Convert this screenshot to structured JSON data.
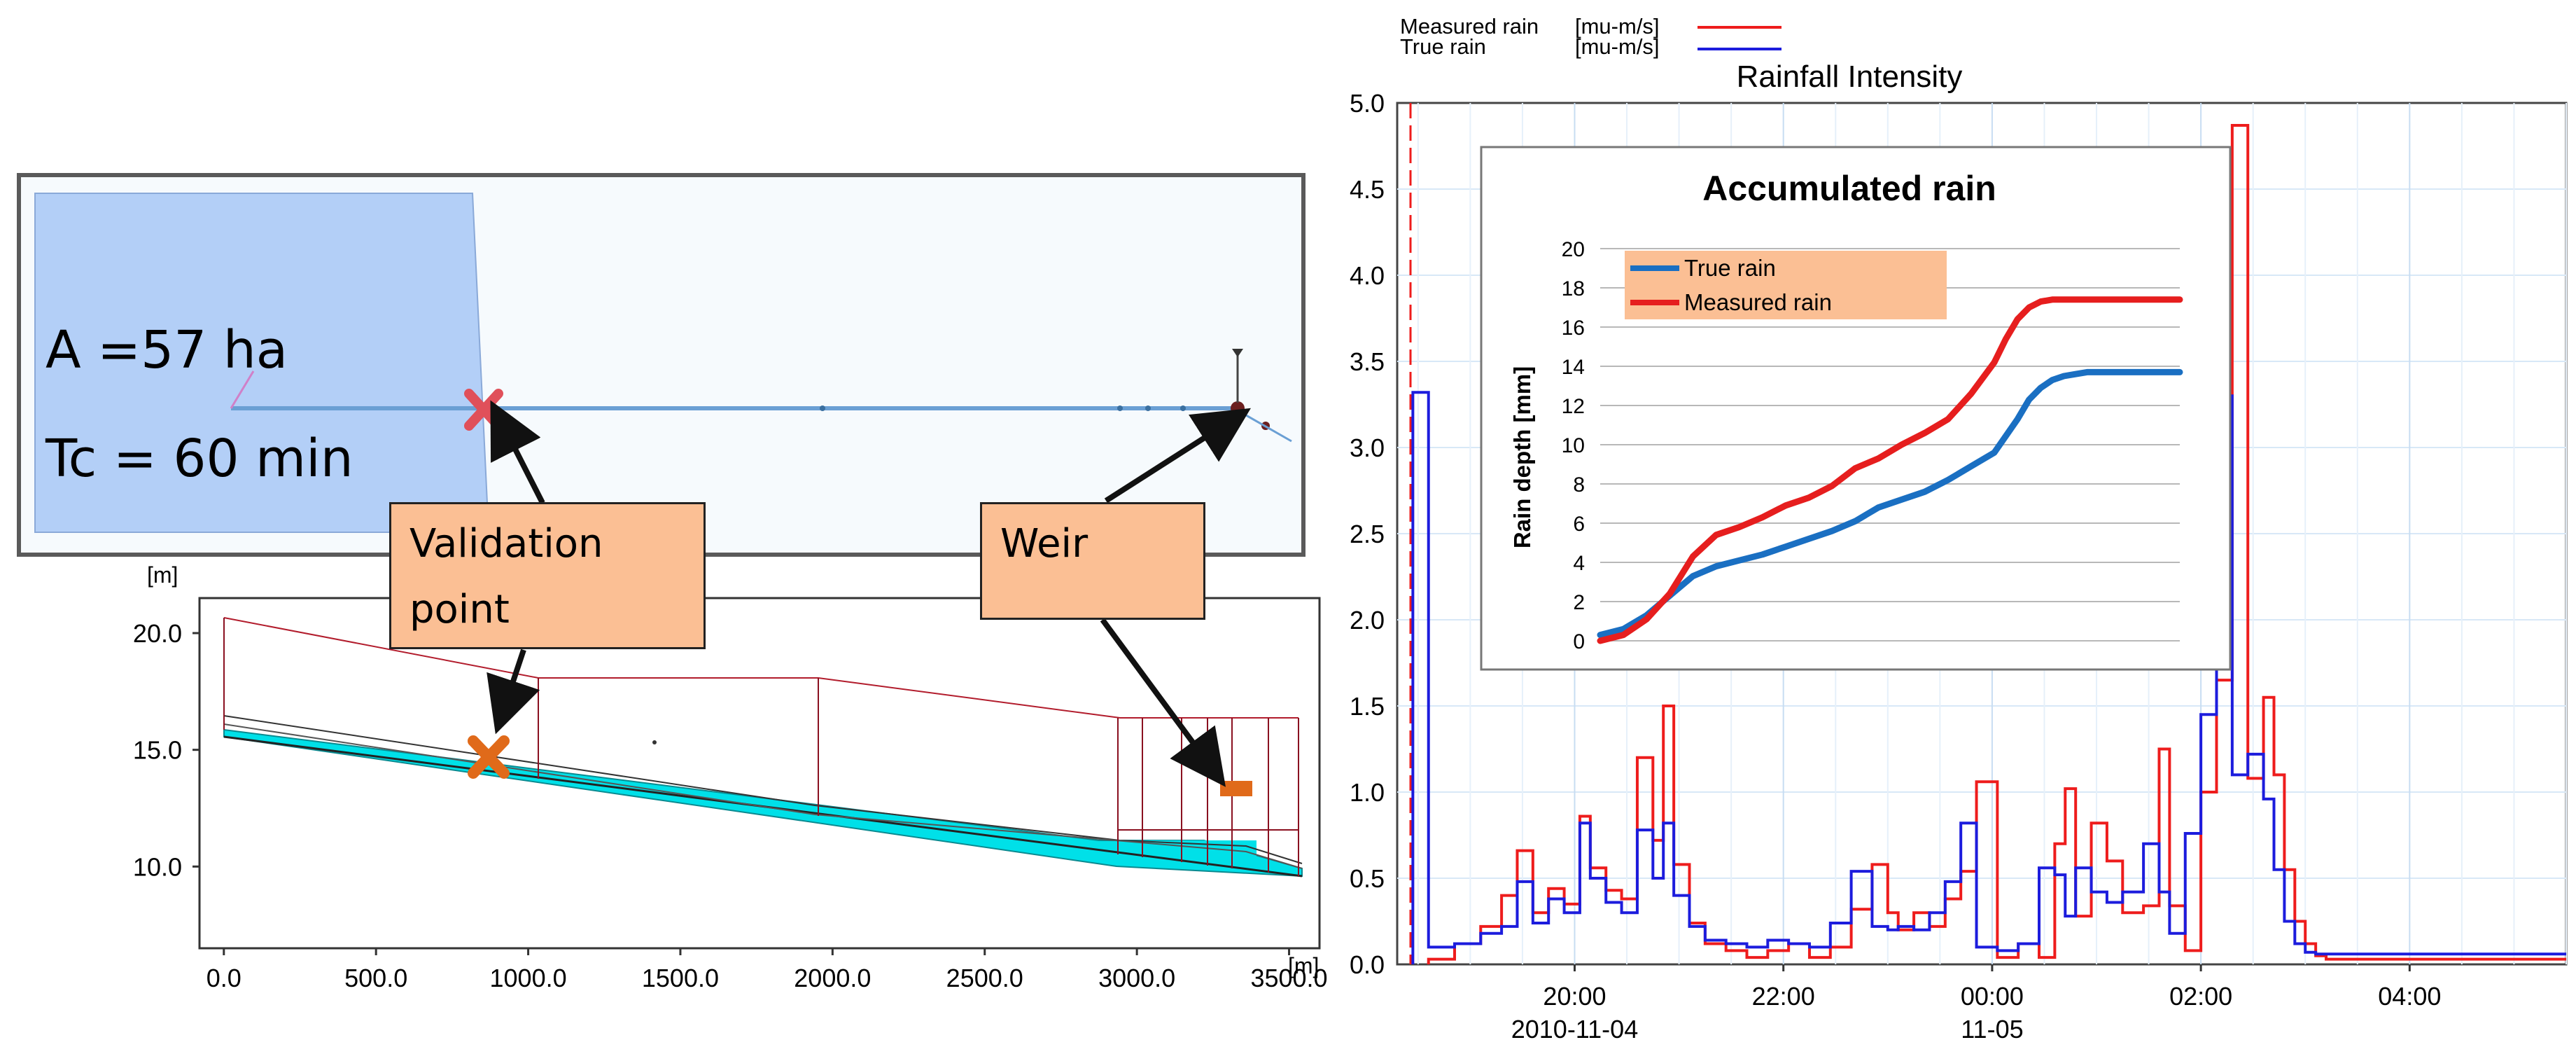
{
  "plan_view": {
    "area_label": "A =57 ha",
    "tc_label": "Tc = 60 min"
  },
  "callouts": {
    "validation": "Validation point",
    "weir": "Weir"
  },
  "profile_chart": {
    "y_unit": "[m]",
    "x_unit": "[m]",
    "y_ticks": [
      "20.0",
      "15.0",
      "10.0"
    ],
    "y_tick_values": [
      20,
      15,
      10
    ],
    "x_ticks": [
      "0.0",
      "500.0",
      "1000.0",
      "1500.0",
      "2000.0",
      "2500.0",
      "3000.0",
      "3500.0"
    ],
    "x_tick_values": [
      0,
      500,
      1000,
      1500,
      2000,
      2500,
      3000,
      3500
    ],
    "x_range": [
      -80,
      3600
    ],
    "y_range": [
      6.5,
      21.5
    ]
  },
  "colors": {
    "measured": "#ee1c1c",
    "true": "#1c1cdd",
    "accum_true": "#1a6fc2",
    "accum_measured": "#e61e1e",
    "callout_fill": "#fbbf94",
    "catchment": "#b3cff7",
    "water": "#00e0e8",
    "marker": "#e06a1a"
  },
  "chart_data": [
    {
      "type": "line",
      "title": "Rainfall Intensity",
      "legend": [
        {
          "name": "Measured rain",
          "unit": "[mu-m/s]"
        },
        {
          "name": "True rain",
          "unit": "[mu-m/s]"
        }
      ],
      "xlabel": "",
      "ylabel": "",
      "x_unit": "hours since 2010-11-04 00:00",
      "xlim": [
        18.3,
        29.5
      ],
      "ylim": [
        0,
        5.0
      ],
      "y_ticks": [
        "5.0",
        "4.5",
        "4.0",
        "3.5",
        "3.0",
        "2.5",
        "2.0",
        "1.5",
        "1.0",
        "0.5",
        "0.0"
      ],
      "y_tick_values": [
        5.0,
        4.5,
        4.0,
        3.5,
        3.0,
        2.5,
        2.0,
        1.5,
        1.0,
        0.5,
        0.0
      ],
      "x_ticks": [
        "20:00",
        "22:00",
        "00:00",
        "02:00",
        "04:00"
      ],
      "x_tick_values": [
        20,
        22,
        24,
        26,
        28
      ],
      "x_dates": [
        "2010-11-04",
        "11-05"
      ],
      "series": [
        {
          "name": "Measured rain",
          "x": [
            18.6,
            18.85,
            19.1,
            19.3,
            19.45,
            19.6,
            19.75,
            19.9,
            20.05,
            20.15,
            20.3,
            20.45,
            20.6,
            20.75,
            20.85,
            20.95,
            21.1,
            21.25,
            21.45,
            21.65,
            21.85,
            22.05,
            22.25,
            22.45,
            22.65,
            22.85,
            23.0,
            23.1,
            23.25,
            23.4,
            23.55,
            23.7,
            23.85,
            24.05,
            24.25,
            24.45,
            24.6,
            24.7,
            24.8,
            24.95,
            25.1,
            25.25,
            25.45,
            25.6,
            25.7,
            25.85,
            26.0,
            26.15,
            26.3,
            26.45,
            26.6,
            26.7,
            26.8,
            26.9,
            27.0,
            27.1,
            27.2,
            27.3,
            27.4,
            27.5,
            27.6,
            27.75,
            27.9,
            28.05,
            28.2,
            28.4,
            28.6,
            28.8,
            29.0,
            29.2,
            29.45
          ],
          "values": [
            0.03,
            0.12,
            0.22,
            0.4,
            0.66,
            0.3,
            0.44,
            0.35,
            0.86,
            0.56,
            0.43,
            0.38,
            1.2,
            0.72,
            1.5,
            0.58,
            0.24,
            0.12,
            0.08,
            0.04,
            0.08,
            0.12,
            0.04,
            0.1,
            0.32,
            0.58,
            0.3,
            0.2,
            0.3,
            0.22,
            0.38,
            0.54,
            1.06,
            0.04,
            0.12,
            0.04,
            0.7,
            1.02,
            0.28,
            0.82,
            0.6,
            0.3,
            0.34,
            1.25,
            0.34,
            0.08,
            1.0,
            1.65,
            4.87,
            1.08,
            1.55,
            1.1,
            0.55,
            0.25,
            0.12,
            0.05,
            0.03,
            0.03,
            0.03,
            0.03,
            0.03,
            0.03,
            0.03,
            0.03,
            0.03,
            0.03,
            0.03,
            0.03,
            0.03,
            0.03,
            0.03
          ]
        },
        {
          "name": "True rain",
          "x": [
            18.45,
            18.6,
            18.85,
            19.1,
            19.3,
            19.45,
            19.6,
            19.75,
            19.9,
            20.05,
            20.15,
            20.3,
            20.45,
            20.6,
            20.75,
            20.85,
            20.95,
            21.1,
            21.25,
            21.45,
            21.65,
            21.85,
            22.05,
            22.25,
            22.45,
            22.65,
            22.85,
            23.0,
            23.1,
            23.25,
            23.4,
            23.55,
            23.7,
            23.85,
            24.05,
            24.25,
            24.45,
            24.6,
            24.7,
            24.8,
            24.95,
            25.1,
            25.25,
            25.45,
            25.6,
            25.7,
            25.85,
            26.0,
            26.15,
            26.3,
            26.45,
            26.6,
            26.7,
            26.8,
            26.9,
            27.0,
            27.1,
            27.2,
            27.3,
            27.4,
            27.5,
            27.6,
            27.75,
            27.9,
            28.05,
            28.2,
            28.4,
            28.6,
            28.8,
            29.0,
            29.2,
            29.45
          ],
          "values": [
            3.32,
            0.1,
            0.12,
            0.18,
            0.22,
            0.48,
            0.24,
            0.38,
            0.3,
            0.82,
            0.5,
            0.36,
            0.3,
            0.78,
            0.5,
            0.82,
            0.4,
            0.22,
            0.14,
            0.12,
            0.1,
            0.14,
            0.12,
            0.1,
            0.24,
            0.54,
            0.22,
            0.2,
            0.22,
            0.2,
            0.3,
            0.48,
            0.82,
            0.1,
            0.08,
            0.12,
            0.56,
            0.52,
            0.28,
            0.56,
            0.42,
            0.36,
            0.42,
            0.7,
            0.42,
            0.18,
            0.76,
            1.45,
            3.3,
            1.1,
            1.22,
            0.96,
            0.55,
            0.25,
            0.12,
            0.07,
            0.06,
            0.06,
            0.06,
            0.06,
            0.06,
            0.06,
            0.06,
            0.06,
            0.06,
            0.06,
            0.06,
            0.06,
            0.06,
            0.06,
            0.06,
            0.06
          ]
        }
      ]
    },
    {
      "type": "line",
      "title": "Accumulated rain",
      "xlabel": "",
      "ylabel": "Rain depth [mm]",
      "ylim": [
        0,
        20
      ],
      "y_ticks": [
        "20",
        "18",
        "16",
        "14",
        "12",
        "10",
        "8",
        "6",
        "4",
        "2",
        "0"
      ],
      "y_tick_values": [
        20,
        18,
        16,
        14,
        12,
        10,
        8,
        6,
        4,
        2,
        0
      ],
      "xlim": [
        0,
        100
      ],
      "legend": [
        "True rain",
        "Measured rain"
      ],
      "series": [
        {
          "name": "True rain",
          "x": [
            0,
            4,
            8,
            12,
            16,
            20,
            24,
            28,
            32,
            36,
            40,
            44,
            48,
            52,
            56,
            60,
            64,
            68,
            72,
            74,
            76,
            78,
            80,
            82,
            84,
            86,
            88,
            90,
            92,
            94,
            96,
            98,
            100
          ],
          "values": [
            0.3,
            0.6,
            1.3,
            2.3,
            3.3,
            3.8,
            4.1,
            4.4,
            4.8,
            5.2,
            5.6,
            6.1,
            6.8,
            7.2,
            7.6,
            8.2,
            8.9,
            9.6,
            11.3,
            12.3,
            12.9,
            13.3,
            13.5,
            13.6,
            13.7,
            13.7,
            13.7,
            13.7,
            13.7,
            13.7,
            13.7,
            13.7,
            13.7
          ]
        },
        {
          "name": "Measured rain",
          "x": [
            0,
            4,
            8,
            12,
            16,
            20,
            24,
            28,
            32,
            36,
            40,
            44,
            48,
            52,
            56,
            60,
            64,
            68,
            70,
            72,
            74,
            76,
            78,
            80,
            82,
            84,
            86,
            88,
            90,
            92,
            94,
            96,
            98,
            100
          ],
          "values": [
            0.0,
            0.3,
            1.1,
            2.4,
            4.3,
            5.4,
            5.8,
            6.3,
            6.9,
            7.3,
            7.9,
            8.8,
            9.3,
            10.0,
            10.6,
            11.3,
            12.6,
            14.2,
            15.4,
            16.4,
            17.0,
            17.3,
            17.4,
            17.4,
            17.4,
            17.4,
            17.4,
            17.4,
            17.4,
            17.4,
            17.4,
            17.4,
            17.4,
            17.4
          ]
        }
      ]
    }
  ]
}
